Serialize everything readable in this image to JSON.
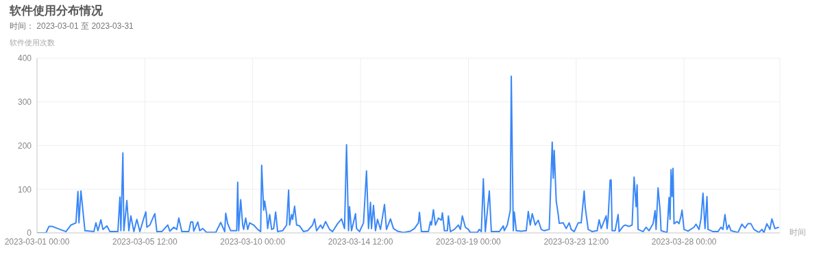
{
  "chart_data": {
    "type": "line",
    "title": "软件使用分布情况",
    "subtitle": "时间： 2023-03-01 至 2023-03-31",
    "ylabel": "软件使用次数",
    "xlabel": "时间",
    "xlim": [
      "2023-03-01T00:00",
      "2023-04-01T00:00"
    ],
    "xticks": [
      {
        "value": "2023-03-01T00:00",
        "label": "2023-03-01 00:00"
      },
      {
        "value": "2023-03-05T12:00",
        "label": "2023-03-05 12:00"
      },
      {
        "value": "2023-03-10T00:00",
        "label": "2023-03-10 00:00"
      },
      {
        "value": "2023-03-14T12:00",
        "label": "2023-03-14 12:00"
      },
      {
        "value": "2023-03-19T00:00",
        "label": "2023-03-19 00:00"
      },
      {
        "value": "2023-03-23T12:00",
        "label": "2023-03-23 12:00"
      },
      {
        "value": "2023-03-28T00:00",
        "label": "2023-03-28 00:00"
      }
    ],
    "ylim": [
      0,
      400
    ],
    "yticks": [
      0,
      100,
      200,
      300,
      400
    ],
    "grid": true,
    "marker": "none",
    "line_style": "solid",
    "x": [
      "2023-03-01T00:00",
      "2023-03-01T09:00",
      "2023-03-01T12:00",
      "2023-03-01T15:00",
      "2023-03-01T23:00",
      "2023-03-02T05:00",
      "2023-03-02T10:00",
      "2023-03-02T15:00",
      "2023-03-02T17:00",
      "2023-03-02T18:00",
      "2023-03-02T20:00",
      "2023-03-03T00:00",
      "2023-03-03T09:00",
      "2023-03-03T11:00",
      "2023-03-03T13:00",
      "2023-03-03T16:00",
      "2023-03-03T18:00",
      "2023-03-03T22:00",
      "2023-03-04T01:00",
      "2023-03-04T09:00",
      "2023-03-04T11:00",
      "2023-03-04T12:00",
      "2023-03-04T14:00",
      "2023-03-04T15:00",
      "2023-03-04T18:00",
      "2023-03-04T20:00",
      "2023-03-04T22:00",
      "2023-03-05T01:00",
      "2023-03-05T04:00",
      "2023-03-05T07:00",
      "2023-03-05T11:00",
      "2023-03-05T13:00",
      "2023-03-05T14:00",
      "2023-03-05T17:00",
      "2023-03-05T20:00",
      "2023-03-05T22:00",
      "2023-03-06T00:00",
      "2023-03-06T05:00",
      "2023-03-06T11:00",
      "2023-03-06T13:00",
      "2023-03-06T17:00",
      "2023-03-06T20:00",
      "2023-03-06T22:00",
      "2023-03-07T01:00",
      "2023-03-07T08:00",
      "2023-03-07T10:00",
      "2023-03-07T12:00",
      "2023-03-07T13:00",
      "2023-03-07T17:00",
      "2023-03-07T19:00",
      "2023-03-07T22:00",
      "2023-03-08T02:00",
      "2023-03-08T11:00",
      "2023-03-08T16:00",
      "2023-03-08T19:00",
      "2023-03-08T20:00",
      "2023-03-08T21:00",
      "2023-03-08T23:00",
      "2023-03-09T02:00",
      "2023-03-09T08:00",
      "2023-03-09T09:00",
      "2023-03-09T10:00",
      "2023-03-09T12:00",
      "2023-03-09T14:00",
      "2023-03-09T15:00",
      "2023-03-09T17:00",
      "2023-03-09T19:00",
      "2023-03-09T21:00",
      "2023-03-10T01:00",
      "2023-03-10T05:00",
      "2023-03-10T08:00",
      "2023-03-10T09:00",
      "2023-03-10T11:00",
      "2023-03-10T12:00",
      "2023-03-10T14:00",
      "2023-03-10T15:00",
      "2023-03-10T17:00",
      "2023-03-10T19:00",
      "2023-03-10T21:00",
      "2023-03-10T23:00",
      "2023-03-11T01:00",
      "2023-03-11T06:00",
      "2023-03-11T10:00",
      "2023-03-11T12:00",
      "2023-03-11T13:00",
      "2023-03-11T15:00",
      "2023-03-11T16:00",
      "2023-03-11T18:00",
      "2023-03-11T20:00",
      "2023-03-11T23:00",
      "2023-03-12T03:00",
      "2023-03-12T07:00",
      "2023-03-12T12:00",
      "2023-03-12T14:00",
      "2023-03-12T16:00",
      "2023-03-12T20:00",
      "2023-03-12T22:00",
      "2023-03-13T01:00",
      "2023-03-13T05:00",
      "2023-03-13T08:00",
      "2023-03-13T13:00",
      "2023-03-13T17:00",
      "2023-03-13T20:00",
      "2023-03-13T22:00",
      "2023-03-14T00:00",
      "2023-03-14T01:00",
      "2023-03-14T03:00",
      "2023-03-14T07:00",
      "2023-03-14T08:00",
      "2023-03-14T11:00",
      "2023-03-14T15:00",
      "2023-03-14T18:00",
      "2023-03-14T20:00",
      "2023-03-14T22:00",
      "2023-03-14T23:00",
      "2023-03-15T01:00",
      "2023-03-15T03:00",
      "2023-03-15T05:00",
      "2023-03-15T08:00",
      "2023-03-15T12:00",
      "2023-03-15T14:00",
      "2023-03-15T18:00",
      "2023-03-15T21:00",
      "2023-03-16T01:00",
      "2023-03-16T07:00",
      "2023-03-16T14:00",
      "2023-03-16T18:00",
      "2023-03-16T22:00",
      "2023-03-16T23:00",
      "2023-03-17T01:00",
      "2023-03-17T08:00",
      "2023-03-17T10:00",
      "2023-03-17T11:00",
      "2023-03-17T13:00",
      "2023-03-17T15:00",
      "2023-03-17T18:00",
      "2023-03-17T21:00",
      "2023-03-17T22:00",
      "2023-03-18T00:00",
      "2023-03-18T03:00",
      "2023-03-18T04:00",
      "2023-03-18T06:00",
      "2023-03-18T10:00",
      "2023-03-18T14:00",
      "2023-03-18T16:00",
      "2023-03-18T18:00",
      "2023-03-18T21:00",
      "2023-03-19T00:00",
      "2023-03-19T02:00",
      "2023-03-19T09:00",
      "2023-03-19T11:00",
      "2023-03-19T13:00",
      "2023-03-19T15:00",
      "2023-03-19T17:00",
      "2023-03-19T21:00",
      "2023-03-19T23:00",
      "2023-03-20T07:00",
      "2023-03-20T11:00",
      "2023-03-20T12:00",
      "2023-03-20T15:00",
      "2023-03-20T18:00",
      "2023-03-20T19:00",
      "2023-03-20T21:00",
      "2023-03-20T22:00",
      "2023-03-21T00:00",
      "2023-03-21T05:00",
      "2023-03-21T10:00",
      "2023-03-21T12:00",
      "2023-03-21T14:00",
      "2023-03-21T16:00",
      "2023-03-21T19:00",
      "2023-03-21T22:00",
      "2023-03-22T01:00",
      "2023-03-22T04:00",
      "2023-03-22T09:00",
      "2023-03-22T12:00",
      "2023-03-22T13:00",
      "2023-03-22T14:00",
      "2023-03-22T16:00",
      "2023-03-22T18:00",
      "2023-03-22T19:00",
      "2023-03-22T23:00",
      "2023-03-23T02:00",
      "2023-03-23T05:00",
      "2023-03-23T07:00",
      "2023-03-23T10:00",
      "2023-03-23T14:00",
      "2023-03-23T17:00",
      "2023-03-23T20:00",
      "2023-03-23T21:00",
      "2023-03-24T00:00",
      "2023-03-24T04:00",
      "2023-03-24T09:00",
      "2023-03-24T11:00",
      "2023-03-24T13:00",
      "2023-03-24T18:00",
      "2023-03-24T19:00",
      "2023-03-24T20:00",
      "2023-03-24T22:00",
      "2023-03-24T23:00",
      "2023-03-25T00:00",
      "2023-03-25T03:00",
      "2023-03-25T06:00",
      "2023-03-25T07:00",
      "2023-03-25T11:00",
      "2023-03-25T13:00",
      "2023-03-25T17:00",
      "2023-03-25T20:00",
      "2023-03-25T22:00",
      "2023-03-26T00:00",
      "2023-03-26T01:00",
      "2023-03-26T02:00",
      "2023-03-26T07:00",
      "2023-03-26T10:00",
      "2023-03-26T13:00",
      "2023-03-26T17:00",
      "2023-03-26T19:00",
      "2023-03-26T20:00",
      "2023-03-26T22:00",
      "2023-03-27T00:00",
      "2023-03-27T01:00",
      "2023-03-27T04:00",
      "2023-03-27T07:00",
      "2023-03-27T09:00",
      "2023-03-27T10:00",
      "2023-03-27T11:00",
      "2023-03-27T12:00",
      "2023-03-27T13:00",
      "2023-03-27T14:00",
      "2023-03-27T17:00",
      "2023-03-27T19:00",
      "2023-03-27T21:00",
      "2023-03-27T22:00",
      "2023-03-28T00:00",
      "2023-03-28T04:00",
      "2023-03-28T10:00",
      "2023-03-28T12:00",
      "2023-03-28T15:00",
      "2023-03-28T17:00",
      "2023-03-28T19:00",
      "2023-03-28T21:00",
      "2023-03-28T23:00",
      "2023-03-29T00:00",
      "2023-03-29T05:00",
      "2023-03-29T10:00",
      "2023-03-29T13:00",
      "2023-03-29T15:00",
      "2023-03-29T17:00",
      "2023-03-29T19:00",
      "2023-03-29T21:00",
      "2023-03-29T23:00",
      "2023-03-30T06:00",
      "2023-03-30T10:00",
      "2023-03-30T13:00",
      "2023-03-30T16:00",
      "2023-03-30T19:00",
      "2023-03-30T22:00",
      "2023-03-31T03:00",
      "2023-03-31T06:00",
      "2023-03-31T08:00",
      "2023-03-31T11:00",
      "2023-03-31T14:00",
      "2023-03-31T16:00",
      "2023-03-31T19:00",
      "2023-03-31T23:00"
    ],
    "series": [
      {
        "color": "#3a87f7",
        "values": [
          0,
          0,
          15,
          15,
          8,
          3,
          18,
          23,
          95,
          23,
          96,
          5,
          3,
          23,
          5,
          30,
          8,
          16,
          3,
          3,
          82,
          5,
          183,
          5,
          74,
          5,
          39,
          3,
          31,
          3,
          34,
          48,
          13,
          18,
          34,
          44,
          3,
          3,
          18,
          4,
          13,
          8,
          34,
          3,
          3,
          25,
          25,
          4,
          25,
          5,
          10,
          1,
          1,
          24,
          8,
          3,
          45,
          21,
          5,
          5,
          116,
          5,
          76,
          18,
          8,
          34,
          8,
          23,
          18,
          8,
          3,
          155,
          52,
          73,
          42,
          10,
          42,
          8,
          10,
          48,
          3,
          5,
          18,
          98,
          18,
          42,
          31,
          61,
          18,
          16,
          3,
          5,
          18,
          32,
          5,
          18,
          10,
          26,
          8,
          3,
          21,
          32,
          10,
          202,
          5,
          60,
          5,
          44,
          10,
          3,
          23,
          142,
          10,
          70,
          10,
          63,
          5,
          31,
          8,
          65,
          8,
          32,
          10,
          4,
          1,
          4,
          10,
          23,
          47,
          3,
          3,
          26,
          18,
          53,
          18,
          34,
          29,
          46,
          5,
          5,
          39,
          3,
          8,
          18,
          8,
          39,
          13,
          8,
          1,
          1,
          8,
          3,
          124,
          3,
          96,
          3,
          3,
          16,
          5,
          18,
          52,
          359,
          5,
          48,
          5,
          4,
          5,
          49,
          18,
          44,
          18,
          29,
          8,
          5,
          8,
          208,
          125,
          189,
          73,
          42,
          22,
          23,
          10,
          23,
          8,
          3,
          23,
          23,
          96,
          60,
          8,
          3,
          5,
          30,
          10,
          39,
          10,
          34,
          121,
          121,
          5,
          5,
          42,
          3,
          15,
          18,
          15,
          18,
          128,
          60,
          110,
          8,
          3,
          13,
          5,
          21,
          51,
          8,
          103,
          52,
          5,
          3,
          1,
          81,
          31,
          145,
          83,
          148,
          21,
          26,
          21,
          39,
          52,
          8,
          4,
          13,
          20,
          8,
          32,
          91,
          10,
          83,
          8,
          3,
          3,
          13,
          8,
          42,
          8,
          18,
          5,
          1,
          20,
          11,
          21,
          21,
          8,
          1,
          8,
          1,
          21,
          8,
          32,
          10,
          13
        ]
      }
    ]
  }
}
